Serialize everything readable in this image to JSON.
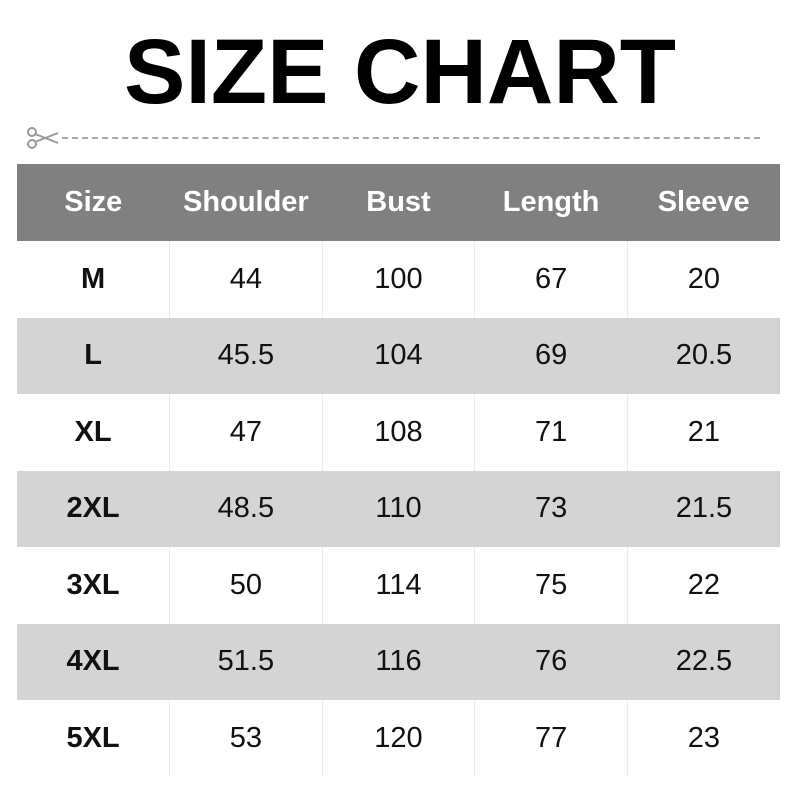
{
  "title": "SIZE CHART",
  "icons": {
    "cut": "scissors-icon"
  },
  "colors": {
    "header_bg": "#808080",
    "alt_row": "#d4d4d4"
  },
  "table": {
    "headers": [
      "Size",
      "Shoulder",
      "Bust",
      "Length",
      "Sleeve"
    ],
    "rows": [
      [
        "M",
        "44",
        "100",
        "67",
        "20"
      ],
      [
        "L",
        "45.5",
        "104",
        "69",
        "20.5"
      ],
      [
        "XL",
        "47",
        "108",
        "71",
        "21"
      ],
      [
        "2XL",
        "48.5",
        "110",
        "73",
        "21.5"
      ],
      [
        "3XL",
        "50",
        "114",
        "75",
        "22"
      ],
      [
        "4XL",
        "51.5",
        "116",
        "76",
        "22.5"
      ],
      [
        "5XL",
        "53",
        "120",
        "77",
        "23"
      ]
    ]
  }
}
